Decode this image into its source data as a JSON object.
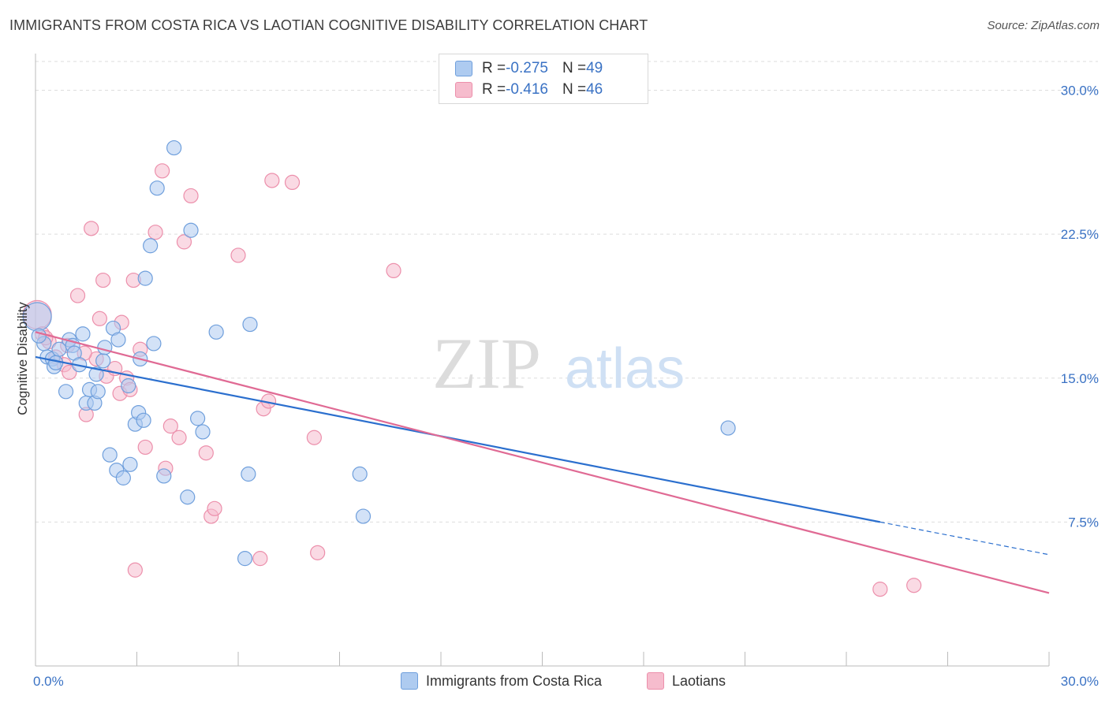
{
  "title": "IMMIGRANTS FROM COSTA RICA VS LAOTIAN COGNITIVE DISABILITY CORRELATION CHART",
  "source": "Source: ZipAtlas.com",
  "watermark": {
    "zip": "ZIP",
    "atlas": "atlas"
  },
  "colors": {
    "blue_fill": "#aecbf0",
    "blue_stroke": "#6f9fdc",
    "blue_line": "#2b6fce",
    "pink_fill": "#f6bccd",
    "pink_stroke": "#ec8fab",
    "pink_line": "#e06a94",
    "tick": "#3a72c4",
    "grid": "#dddddd"
  },
  "legend": {
    "rows": [
      {
        "r_label": "R = ",
        "r_value": "-0.275",
        "n_label": "N = ",
        "n_value": "49"
      },
      {
        "r_label": "R = ",
        "r_value": "-0.416",
        "n_label": "N = ",
        "n_value": "46"
      }
    ]
  },
  "chart_data": {
    "type": "scatter",
    "title": "IMMIGRANTS FROM COSTA RICA VS LAOTIAN COGNITIVE DISABILITY CORRELATION CHART",
    "xlabel": "",
    "ylabel": "Cognitive Disability",
    "xlim": [
      0,
      30
    ],
    "ylim": [
      0,
      31.5
    ],
    "x_ticks": [
      "0.0%",
      "30.0%"
    ],
    "y_ticks": [
      {
        "value": 7.5,
        "label": "7.5%"
      },
      {
        "value": 15.0,
        "label": "15.0%"
      },
      {
        "value": 22.5,
        "label": "22.5%"
      },
      {
        "value": 30.0,
        "label": "30.0%"
      }
    ],
    "grid": true,
    "legend_position": "top-center",
    "series": [
      {
        "name": "Immigrants from Costa Rica",
        "color": "blue",
        "points": [
          [
            0.05,
            18.2
          ],
          [
            0.25,
            16.8
          ],
          [
            0.35,
            16.1
          ],
          [
            0.5,
            16.0
          ],
          [
            0.55,
            15.6
          ],
          [
            0.7,
            16.5
          ],
          [
            0.9,
            14.3
          ],
          [
            1.0,
            17.0
          ],
          [
            1.1,
            16.7
          ],
          [
            1.15,
            16.3
          ],
          [
            1.3,
            15.7
          ],
          [
            1.4,
            17.3
          ],
          [
            1.5,
            13.7
          ],
          [
            1.6,
            14.4
          ],
          [
            1.75,
            13.7
          ],
          [
            1.8,
            15.2
          ],
          [
            1.85,
            14.3
          ],
          [
            2.0,
            15.9
          ],
          [
            2.05,
            16.6
          ],
          [
            2.2,
            11.0
          ],
          [
            2.3,
            17.6
          ],
          [
            2.4,
            10.2
          ],
          [
            2.45,
            17.0
          ],
          [
            2.6,
            9.8
          ],
          [
            2.75,
            14.6
          ],
          [
            2.8,
            10.5
          ],
          [
            2.95,
            12.6
          ],
          [
            3.05,
            13.2
          ],
          [
            3.1,
            16.0
          ],
          [
            3.2,
            12.8
          ],
          [
            3.25,
            20.2
          ],
          [
            3.5,
            16.8
          ],
          [
            3.4,
            21.9
          ],
          [
            3.6,
            24.9
          ],
          [
            3.8,
            9.9
          ],
          [
            4.1,
            27.0
          ],
          [
            4.5,
            8.8
          ],
          [
            4.6,
            22.7
          ],
          [
            4.8,
            12.9
          ],
          [
            4.95,
            12.2
          ],
          [
            5.35,
            17.4
          ],
          [
            6.2,
            5.6
          ],
          [
            6.3,
            10.0
          ],
          [
            6.35,
            17.8
          ],
          [
            9.6,
            10.0
          ],
          [
            9.7,
            7.8
          ],
          [
            20.5,
            12.4
          ],
          [
            0.1,
            17.2
          ],
          [
            0.6,
            15.8
          ]
        ]
      },
      {
        "name": "Laotians",
        "color": "pink",
        "points": [
          [
            0.05,
            18.3
          ],
          [
            0.2,
            17.3
          ],
          [
            0.4,
            16.9
          ],
          [
            0.6,
            16.1
          ],
          [
            0.85,
            15.7
          ],
          [
            1.0,
            15.3
          ],
          [
            1.25,
            19.3
          ],
          [
            1.5,
            13.1
          ],
          [
            1.65,
            22.8
          ],
          [
            1.8,
            16.0
          ],
          [
            1.9,
            18.1
          ],
          [
            2.0,
            20.1
          ],
          [
            2.1,
            15.1
          ],
          [
            2.35,
            15.5
          ],
          [
            2.5,
            14.2
          ],
          [
            2.55,
            17.9
          ],
          [
            2.7,
            15.0
          ],
          [
            2.8,
            14.4
          ],
          [
            2.9,
            20.1
          ],
          [
            2.95,
            5.0
          ],
          [
            3.1,
            16.5
          ],
          [
            3.25,
            11.4
          ],
          [
            3.55,
            22.6
          ],
          [
            3.75,
            25.8
          ],
          [
            3.85,
            10.3
          ],
          [
            4.0,
            12.5
          ],
          [
            4.25,
            11.9
          ],
          [
            4.4,
            22.1
          ],
          [
            4.6,
            24.5
          ],
          [
            5.05,
            11.1
          ],
          [
            5.2,
            7.8
          ],
          [
            5.3,
            8.2
          ],
          [
            6.0,
            21.4
          ],
          [
            6.65,
            5.6
          ],
          [
            6.75,
            13.4
          ],
          [
            6.9,
            13.8
          ],
          [
            7.0,
            25.3
          ],
          [
            7.6,
            25.2
          ],
          [
            8.25,
            11.9
          ],
          [
            8.35,
            5.9
          ],
          [
            10.6,
            20.6
          ],
          [
            25.0,
            4.0
          ],
          [
            26.0,
            4.2
          ],
          [
            0.3,
            17.1
          ],
          [
            1.45,
            16.3
          ],
          [
            0.95,
            16.7
          ]
        ]
      }
    ],
    "trend_lines": [
      {
        "series": "Immigrants from Costa Rica",
        "x0": 0,
        "y0": 16.1,
        "x1": 25.0,
        "y1": 7.5,
        "dashed_to_x": 30,
        "dashed_to_y": 5.8
      },
      {
        "series": "Laotians",
        "x0": 0,
        "y0": 17.4,
        "x1": 30,
        "y1": 3.8
      }
    ]
  },
  "bottom_legend": [
    {
      "label": "Immigrants from Costa Rica"
    },
    {
      "label": "Laotians"
    }
  ]
}
